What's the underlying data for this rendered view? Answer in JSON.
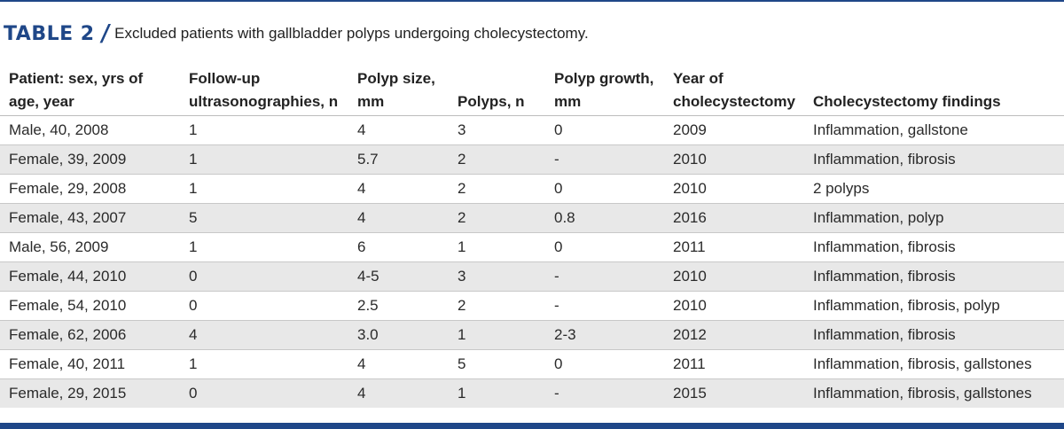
{
  "caption": {
    "label": "TABLE 2",
    "slash": "/",
    "text": "Excluded patients with gallbladder polyps undergoing cholecystectomy."
  },
  "columns": [
    {
      "line1": "Patient: sex, yrs of",
      "line2": "age, year"
    },
    {
      "line1": "Follow-up",
      "line2": "ultrasonographies, n"
    },
    {
      "line1": "Polyp size,",
      "line2": "mm"
    },
    {
      "line1": "",
      "line2": "Polyps, n"
    },
    {
      "line1": "Polyp growth,",
      "line2": "mm"
    },
    {
      "line1": "Year of",
      "line2": "cholecystectomy"
    },
    {
      "line1": "",
      "line2": "Cholecystectomy findings"
    }
  ],
  "rows": [
    [
      "Male, 40, 2008",
      "1",
      "4",
      "3",
      "0",
      "2009",
      "Inflammation, gallstone"
    ],
    [
      "Female, 39, 2009",
      "1",
      "5.7",
      "2",
      "-",
      "2010",
      "Inflammation, fibrosis"
    ],
    [
      "Female, 29, 2008",
      "1",
      "4",
      "2",
      "0",
      "2010",
      "2 polyps"
    ],
    [
      "Female, 43, 2007",
      "5",
      "4",
      "2",
      "0.8",
      "2016",
      "Inflammation, polyp"
    ],
    [
      "Male, 56, 2009",
      "1",
      "6",
      "1",
      "0",
      "2011",
      "Inflammation, fibrosis"
    ],
    [
      "Female, 44, 2010",
      "0",
      "4-5",
      "3",
      "-",
      "2010",
      "Inflammation, fibrosis"
    ],
    [
      "Female, 54, 2010",
      "0",
      "2.5",
      "2",
      "-",
      "2010",
      "Inflammation, fibrosis, polyp"
    ],
    [
      "Female, 62, 2006",
      "4",
      "3.0",
      "1",
      "2-3",
      "2012",
      "Inflammation, fibrosis"
    ],
    [
      "Female, 40, 2011",
      "1",
      "4",
      "5",
      "0",
      "2011",
      "Inflammation, fibrosis, gallstones"
    ],
    [
      "Female, 29, 2015",
      "0",
      "4",
      "1",
      "-",
      "2015",
      "Inflammation, fibrosis, gallstones"
    ]
  ],
  "colors": {
    "accent": "#1f4788",
    "stripe": "#e8e8e8"
  }
}
